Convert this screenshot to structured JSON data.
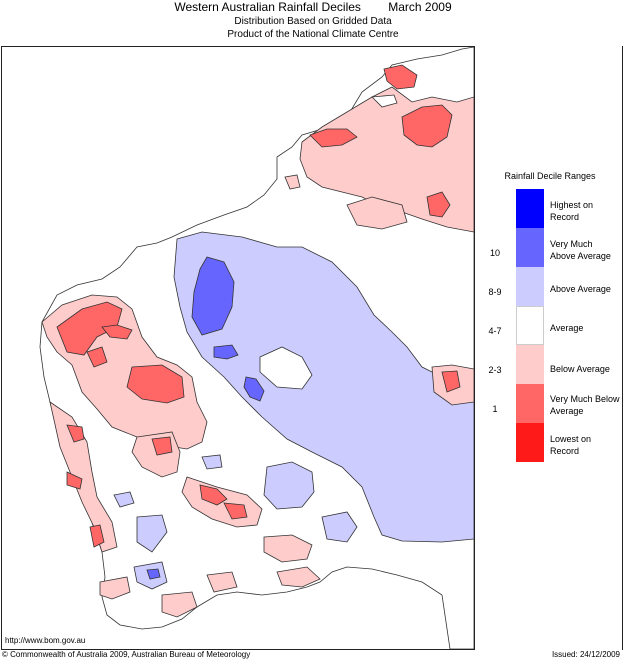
{
  "header": {
    "title": "Western Australian Rainfall Deciles",
    "period": "March 2009",
    "subtitle1": "Distribution Based on Gridded Data",
    "subtitle2": "Product of the National Climate Centre"
  },
  "legend": {
    "title": "Rainfall Decile Ranges",
    "items": [
      {
        "label": "Highest on Record",
        "range": "",
        "color": "#0000ff"
      },
      {
        "label": "Very Much Above Average",
        "range": "10",
        "color": "#6666ff"
      },
      {
        "label": "Above Average",
        "range": "8-9",
        "color": "#ccccff"
      },
      {
        "label": "Average",
        "range": "4-7",
        "color": "#ffffff"
      },
      {
        "label": "Below Average",
        "range": "2-3",
        "color": "#ffcccc"
      },
      {
        "label": "Very Much Below Average",
        "range": "1",
        "color": "#ff6666"
      },
      {
        "label": "Lowest on Record",
        "range": "",
        "color": "#ff1a1a"
      }
    ]
  },
  "footer": {
    "url": "http://www.bom.gov.au",
    "copyright": "© Commonwealth of Australia 2009, Australian Bureau of Meteorology",
    "issued": "Issued: 24/12/2009"
  },
  "colors": {
    "above": "#ccccff",
    "very_above": "#6666ff",
    "below": "#ffcccc",
    "very_below": "#ff6666",
    "outline": "#333333"
  }
}
